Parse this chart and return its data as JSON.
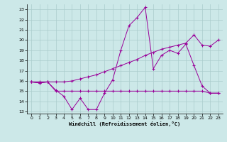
{
  "background_color": "#cce8e8",
  "grid_color": "#aacccc",
  "line_color": "#990099",
  "xlim": [
    -0.5,
    23.5
  ],
  "ylim": [
    12.8,
    23.5
  ],
  "yticks": [
    13,
    14,
    15,
    16,
    17,
    18,
    19,
    20,
    21,
    22,
    23
  ],
  "xticks": [
    0,
    1,
    2,
    3,
    4,
    5,
    6,
    7,
    8,
    9,
    10,
    11,
    12,
    13,
    14,
    15,
    16,
    17,
    18,
    19,
    20,
    21,
    22,
    23
  ],
  "xlabel": "Windchill (Refroidissement éolien,°C)",
  "series1_x": [
    0,
    1,
    2,
    3,
    4,
    5,
    6,
    7,
    8,
    9,
    10,
    11,
    12,
    13,
    14,
    15,
    16,
    17,
    18,
    19,
    20,
    21,
    22,
    23
  ],
  "series1_y": [
    15.9,
    15.8,
    15.9,
    15.1,
    14.5,
    13.2,
    14.3,
    13.2,
    13.2,
    14.8,
    16.1,
    19.0,
    21.4,
    22.2,
    23.2,
    17.2,
    18.5,
    19.0,
    18.7,
    19.6,
    17.5,
    15.5,
    14.8,
    14.8
  ],
  "series2_x": [
    0,
    1,
    2,
    3,
    4,
    5,
    6,
    7,
    8,
    9,
    10,
    11,
    12,
    13,
    14,
    15,
    16,
    17,
    18,
    19,
    20,
    21,
    22,
    23
  ],
  "series2_y": [
    15.9,
    15.8,
    15.9,
    15.0,
    15.0,
    15.0,
    15.0,
    15.0,
    15.0,
    15.0,
    15.0,
    15.0,
    15.0,
    15.0,
    15.0,
    15.0,
    15.0,
    15.0,
    15.0,
    15.0,
    15.0,
    15.0,
    14.8,
    14.8
  ],
  "series3_x": [
    0,
    1,
    2,
    3,
    4,
    5,
    6,
    7,
    8,
    9,
    10,
    11,
    12,
    13,
    14,
    15,
    16,
    17,
    18,
    19,
    20,
    21,
    22,
    23
  ],
  "series3_y": [
    15.9,
    15.9,
    15.9,
    15.9,
    15.9,
    16.0,
    16.2,
    16.4,
    16.6,
    16.9,
    17.2,
    17.5,
    17.8,
    18.1,
    18.5,
    18.8,
    19.1,
    19.3,
    19.5,
    19.7,
    20.5,
    19.5,
    19.4,
    20.0
  ]
}
